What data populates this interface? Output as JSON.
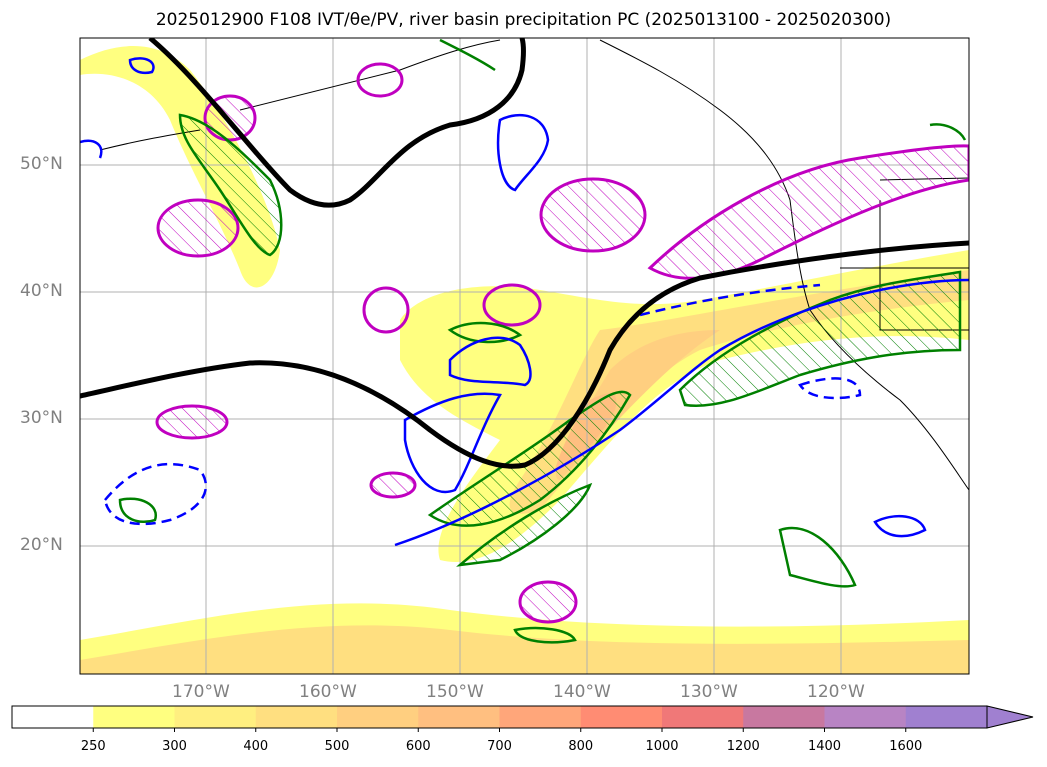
{
  "title": "2025012900 F108 IVT/θe/PV, river basin precipitation PC (2025013100 - 2025020300)",
  "map": {
    "lat_labels": [
      "50°N",
      "40°N",
      "30°N",
      "20°N"
    ],
    "lon_labels": [
      "170°W",
      "160°W",
      "150°W",
      "140°W",
      "130°W",
      "120°W"
    ],
    "extent": {
      "lon": [
        -180,
        -110
      ],
      "lat": [
        10,
        60
      ]
    }
  },
  "colorbar": {
    "ticks": [
      "250",
      "300",
      "400",
      "500",
      "600",
      "700",
      "800",
      "1000",
      "1200",
      "1400",
      "1600"
    ],
    "colors": [
      "#ffffff",
      "#ffff80",
      "#ffef80",
      "#ffdf80",
      "#ffcf80",
      "#ffbf80",
      "#ffa67a",
      "#ff8c73",
      "#f07878",
      "#c878a0",
      "#b884c4",
      "#a080d0"
    ],
    "extend": "max"
  },
  "legend_colors": {
    "theta_e_contour": "#000000",
    "pv_contour": "#c000c0",
    "precip_positive": "#008000",
    "precip_negative": "#0000ff"
  }
}
